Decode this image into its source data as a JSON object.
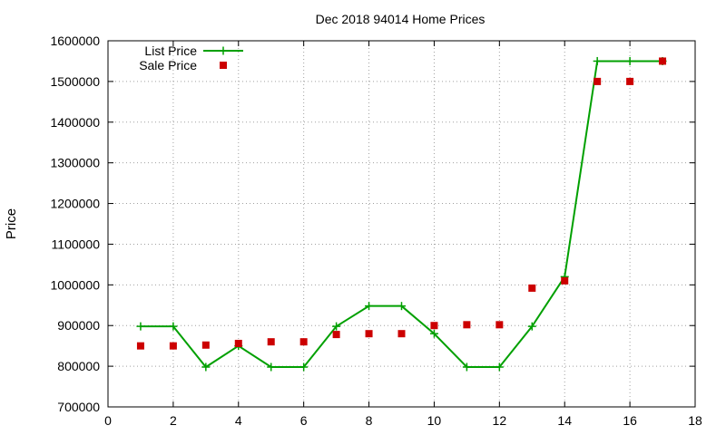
{
  "chart_data": {
    "type": "line",
    "title": "Dec 2018 94014 Home Prices",
    "xlabel": "",
    "ylabel": "Price",
    "xlim": [
      0,
      18
    ],
    "ylim": [
      700000,
      1600000
    ],
    "xticks": [
      "0",
      "2",
      "4",
      "6",
      "8",
      "10",
      "12",
      "14",
      "16",
      "18"
    ],
    "yticks": [
      "700000",
      "800000",
      "900000",
      "1000000",
      "1100000",
      "1200000",
      "1300000",
      "1400000",
      "1500000",
      "1600000"
    ],
    "grid": true,
    "legend_position": "top-left",
    "series": [
      {
        "name": "List Price",
        "style": "linespoints",
        "color": "#00a000",
        "x": [
          1,
          2,
          3,
          4,
          5,
          6,
          7,
          8,
          9,
          10,
          11,
          12,
          13,
          14,
          15,
          16,
          17
        ],
        "y": [
          898000,
          898000,
          798000,
          850000,
          798000,
          798000,
          898000,
          948000,
          948000,
          880000,
          798000,
          798000,
          898000,
          1020000,
          1550000,
          1550000,
          1550000
        ]
      },
      {
        "name": "Sale Price",
        "style": "points",
        "color": "#cc0000",
        "x": [
          1,
          2,
          3,
          4,
          5,
          6,
          7,
          8,
          9,
          10,
          11,
          12,
          13,
          14,
          15,
          16,
          17
        ],
        "y": [
          850000,
          850000,
          852000,
          856000,
          860000,
          860000,
          878000,
          880000,
          880000,
          900000,
          902000,
          902000,
          992000,
          1010000,
          1500000,
          1500000,
          1550000
        ]
      }
    ]
  }
}
